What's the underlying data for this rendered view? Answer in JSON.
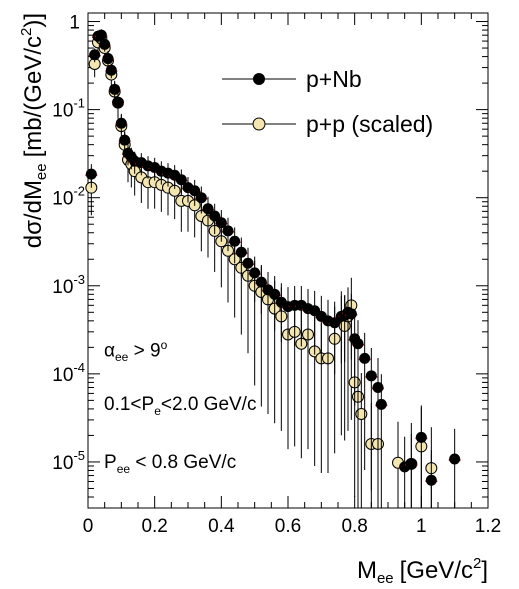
{
  "chart_data": {
    "type": "scatter",
    "xlabel": "M",
    "xlabel_sub": "ee",
    "xlabel_unit": "[GeV/c",
    "xlabel_sup": "2",
    "xlabel_end": "]",
    "ylabel": "dσ/dM",
    "ylabel_sub": "ee",
    "ylabel_unit": "[mb/(GeV/c",
    "ylabel_sup": "2",
    "ylabel_end": ")]",
    "xlim": [
      0,
      1.2
    ],
    "ylim": [
      3e-06,
      1.25
    ],
    "yscale": "log",
    "grid": false,
    "legend_position": "top-right",
    "x_ticks": [
      "0",
      "0.2",
      "0.4",
      "0.6",
      "0.8",
      "1",
      "1.2"
    ],
    "x_tick_values": [
      0,
      0.2,
      0.4,
      0.6,
      0.8,
      1.0,
      1.2
    ],
    "y_ticks": [
      {
        "base": "10",
        "exp": "-5",
        "value": 1e-05
      },
      {
        "base": "10",
        "exp": "-4",
        "value": 0.0001
      },
      {
        "base": "10",
        "exp": "-3",
        "value": 0.001
      },
      {
        "base": "10",
        "exp": "-2",
        "value": 0.01
      },
      {
        "base": "10",
        "exp": "-1",
        "value": 0.1
      },
      {
        "base": "1",
        "exp": "",
        "value": 1
      }
    ],
    "annotations": {
      "alpha": {
        "main": "α",
        "sub": "ee",
        "rel": " > 9",
        "sup": "o"
      },
      "pe": {
        "pre": "0.1<P",
        "sub": "e",
        "post": "<2.0 GeV/c"
      },
      "pee": {
        "pre": "P",
        "sub": "ee",
        "post": " < 0.8 GeV/c"
      }
    },
    "series": [
      {
        "name": "p+Nb",
        "marker": "filled-circle",
        "color": "#000000",
        "points": [
          [
            0.01,
            0.0185
          ],
          [
            0.02,
            0.42
          ],
          [
            0.03,
            0.68
          ],
          [
            0.04,
            0.7
          ],
          [
            0.05,
            0.55
          ],
          [
            0.06,
            0.38
          ],
          [
            0.07,
            0.28
          ],
          [
            0.08,
            0.17
          ],
          [
            0.09,
            0.12
          ],
          [
            0.1,
            0.07
          ],
          [
            0.11,
            0.045
          ],
          [
            0.12,
            0.032
          ],
          [
            0.13,
            0.029
          ],
          [
            0.14,
            0.026
          ],
          [
            0.16,
            0.025
          ],
          [
            0.18,
            0.023
          ],
          [
            0.2,
            0.022
          ],
          [
            0.22,
            0.02
          ],
          [
            0.24,
            0.019
          ],
          [
            0.26,
            0.018
          ],
          [
            0.28,
            0.016
          ],
          [
            0.3,
            0.013
          ],
          [
            0.32,
            0.012
          ],
          [
            0.34,
            0.01
          ],
          [
            0.36,
            0.0075
          ],
          [
            0.38,
            0.0062
          ],
          [
            0.4,
            0.0052
          ],
          [
            0.42,
            0.0042
          ],
          [
            0.44,
            0.0032
          ],
          [
            0.46,
            0.0024
          ],
          [
            0.48,
            0.0018
          ],
          [
            0.5,
            0.0014
          ],
          [
            0.52,
            0.0011
          ],
          [
            0.54,
            0.0009
          ],
          [
            0.56,
            0.0008
          ],
          [
            0.58,
            0.00065
          ],
          [
            0.6,
            0.00058
          ],
          [
            0.62,
            0.0006
          ],
          [
            0.64,
            0.0006
          ],
          [
            0.66,
            0.00055
          ],
          [
            0.68,
            0.00052
          ],
          [
            0.7,
            0.00045
          ],
          [
            0.72,
            0.0004
          ],
          [
            0.74,
            0.00038
          ],
          [
            0.76,
            0.00045
          ],
          [
            0.77,
            0.00046
          ],
          [
            0.78,
            0.0005
          ],
          [
            0.79,
            0.00048
          ],
          [
            0.8,
            0.00025
          ],
          [
            0.81,
            0.00022
          ],
          [
            0.83,
            0.00015
          ],
          [
            0.85,
            9.5e-05
          ],
          [
            0.87,
            7e-05
          ],
          [
            0.88,
            4.5e-05
          ],
          [
            0.95,
            8.8e-06
          ],
          [
            0.97,
            9.5e-06
          ],
          [
            1.0,
            1.9e-05
          ],
          [
            1.03,
            6.2e-06
          ],
          [
            1.1,
            1.08e-05
          ]
        ]
      },
      {
        "name": "p+p (scaled)",
        "marker": "open-circle",
        "color": "#f4e6b0",
        "points": [
          [
            0.01,
            0.013
          ],
          [
            0.02,
            0.33
          ],
          [
            0.03,
            0.58
          ],
          [
            0.04,
            0.64
          ],
          [
            0.05,
            0.5
          ],
          [
            0.06,
            0.36
          ],
          [
            0.07,
            0.25
          ],
          [
            0.08,
            0.16
          ],
          [
            0.09,
            0.12
          ],
          [
            0.1,
            0.065
          ],
          [
            0.11,
            0.04
          ],
          [
            0.12,
            0.027
          ],
          [
            0.13,
            0.024
          ],
          [
            0.14,
            0.02
          ],
          [
            0.16,
            0.017
          ],
          [
            0.18,
            0.015
          ],
          [
            0.2,
            0.015
          ],
          [
            0.22,
            0.014
          ],
          [
            0.24,
            0.013
          ],
          [
            0.26,
            0.012
          ],
          [
            0.28,
            0.0092
          ],
          [
            0.3,
            0.0092
          ],
          [
            0.32,
            0.0082
          ],
          [
            0.34,
            0.0062
          ],
          [
            0.36,
            0.0055
          ],
          [
            0.38,
            0.0042
          ],
          [
            0.4,
            0.0032
          ],
          [
            0.42,
            0.0025
          ],
          [
            0.44,
            0.002
          ],
          [
            0.46,
            0.0016
          ],
          [
            0.48,
            0.0013
          ],
          [
            0.5,
            0.001
          ],
          [
            0.52,
            0.00085
          ],
          [
            0.54,
            0.0007
          ],
          [
            0.56,
            0.00055
          ],
          [
            0.58,
            0.00045
          ],
          [
            0.6,
            0.00028
          ],
          [
            0.62,
            0.0003
          ],
          [
            0.64,
            0.00022
          ],
          [
            0.66,
            0.00028
          ],
          [
            0.68,
            0.00018
          ],
          [
            0.7,
            0.00015
          ],
          [
            0.72,
            0.00015
          ],
          [
            0.74,
            0.00025
          ],
          [
            0.76,
            0.0004
          ],
          [
            0.77,
            0.00035
          ],
          [
            0.78,
            0.00045
          ],
          [
            0.79,
            0.0006
          ],
          [
            0.8,
            8e-05
          ],
          [
            0.81,
            5.5e-05
          ],
          [
            0.82,
            3.5e-05
          ],
          [
            0.85,
            1.6e-05
          ],
          [
            0.87,
            1.6e-05
          ],
          [
            0.93,
            9.8e-06
          ],
          [
            0.97,
            9.5e-06
          ],
          [
            1.0,
            1.5e-05
          ],
          [
            1.03,
            8.5e-06
          ]
        ]
      }
    ]
  }
}
